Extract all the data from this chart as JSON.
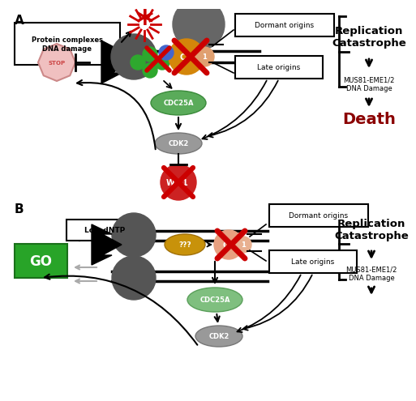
{
  "colors": {
    "white": "#ffffff",
    "black": "#000000",
    "red": "#cc0000",
    "dark_red": "#8b0000",
    "green_dark": "#2e8b2e",
    "green_bright": "#28a428",
    "green_light": "#8fbc8f",
    "gray_dark": "#555555",
    "gray_med": "#888888",
    "gray_light": "#aaaaaa",
    "orange": "#c8920a",
    "salmon": "#e8a080",
    "stop_fill": "#f0c0c0",
    "stop_edge": "#cc8888",
    "blue": "#4466cc"
  },
  "panel_A_label": "A",
  "panel_B_label": "B",
  "box_protein": "Protein complexes\nDNA damage",
  "dormant_label": "Dormant origins",
  "late_label": "Late origins",
  "rep_cat_label": "Replication\nCatastrophe",
  "mus81_label": "MUS81-EME1/2\nDNA Damage",
  "death_label": "Death",
  "stop_label": "STOP",
  "cdc25a_label": "CDC25A",
  "cdk2_label": "CDK2",
  "wee1_label": "W  1",
  "low_dNTP_label": "Low dNTP",
  "go_label": "GO",
  "qqq_label": "???",
  "rep_cat_B_label": "Replication\nCatastrophe",
  "mus81_B_label": "MUS81-EME1/2\nDNA Damage"
}
